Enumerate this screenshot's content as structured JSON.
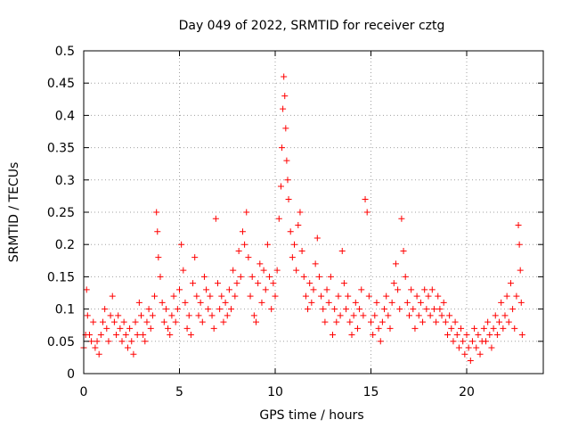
{
  "chart_data": {
    "type": "scatter",
    "title": "Day 049 of 2022, SRMTID for receiver cztg",
    "xlabel": "GPS time / hours",
    "ylabel": "SRMTID / TECUs",
    "xlim": [
      0,
      24
    ],
    "ylim": [
      0,
      0.5
    ],
    "x_ticks": [
      0,
      5,
      10,
      15,
      20
    ],
    "y_ticks": [
      0,
      0.05,
      0.1,
      0.15,
      0.2,
      0.25,
      0.3,
      0.35,
      0.4,
      0.45,
      0.5
    ],
    "x_tick_labels": [
      "0",
      "5",
      "10",
      "15",
      "20"
    ],
    "y_tick_labels": [
      "0",
      "0.05",
      "0.1",
      "0.15",
      "0.2",
      "0.25",
      "0.3",
      "0.35",
      "0.4",
      "0.45",
      "0.5"
    ],
    "grid": true,
    "marker": "+",
    "color": "#ff0000",
    "series": [
      {
        "points": [
          [
            0.0,
            0.04
          ],
          [
            0.1,
            0.06
          ],
          [
            0.15,
            0.13
          ],
          [
            0.2,
            0.09
          ],
          [
            0.3,
            0.06
          ],
          [
            0.4,
            0.05
          ],
          [
            0.5,
            0.08
          ],
          [
            0.6,
            0.04
          ],
          [
            0.7,
            0.05
          ],
          [
            0.8,
            0.03
          ],
          [
            0.9,
            0.06
          ],
          [
            1.0,
            0.08
          ],
          [
            1.1,
            0.1
          ],
          [
            1.2,
            0.07
          ],
          [
            1.3,
            0.05
          ],
          [
            1.4,
            0.09
          ],
          [
            1.5,
            0.12
          ],
          [
            1.6,
            0.08
          ],
          [
            1.7,
            0.06
          ],
          [
            1.8,
            0.09
          ],
          [
            1.9,
            0.07
          ],
          [
            2.0,
            0.05
          ],
          [
            2.1,
            0.08
          ],
          [
            2.2,
            0.06
          ],
          [
            2.3,
            0.04
          ],
          [
            2.4,
            0.07
          ],
          [
            2.5,
            0.05
          ],
          [
            2.6,
            0.03
          ],
          [
            2.7,
            0.08
          ],
          [
            2.8,
            0.06
          ],
          [
            2.9,
            0.11
          ],
          [
            3.0,
            0.09
          ],
          [
            3.1,
            0.06
          ],
          [
            3.2,
            0.05
          ],
          [
            3.3,
            0.08
          ],
          [
            3.4,
            0.1
          ],
          [
            3.5,
            0.07
          ],
          [
            3.6,
            0.09
          ],
          [
            3.7,
            0.12
          ],
          [
            3.8,
            0.25
          ],
          [
            3.85,
            0.22
          ],
          [
            3.9,
            0.18
          ],
          [
            4.0,
            0.15
          ],
          [
            4.1,
            0.11
          ],
          [
            4.2,
            0.08
          ],
          [
            4.3,
            0.1
          ],
          [
            4.4,
            0.07
          ],
          [
            4.5,
            0.06
          ],
          [
            4.6,
            0.09
          ],
          [
            4.7,
            0.12
          ],
          [
            4.8,
            0.08
          ],
          [
            4.9,
            0.1
          ],
          [
            5.0,
            0.13
          ],
          [
            5.1,
            0.2
          ],
          [
            5.2,
            0.16
          ],
          [
            5.3,
            0.11
          ],
          [
            5.4,
            0.07
          ],
          [
            5.5,
            0.09
          ],
          [
            5.6,
            0.06
          ],
          [
            5.7,
            0.14
          ],
          [
            5.8,
            0.18
          ],
          [
            5.9,
            0.12
          ],
          [
            6.0,
            0.09
          ],
          [
            6.1,
            0.11
          ],
          [
            6.2,
            0.08
          ],
          [
            6.3,
            0.15
          ],
          [
            6.4,
            0.13
          ],
          [
            6.5,
            0.1
          ],
          [
            6.6,
            0.12
          ],
          [
            6.7,
            0.09
          ],
          [
            6.8,
            0.07
          ],
          [
            6.9,
            0.24
          ],
          [
            7.0,
            0.14
          ],
          [
            7.1,
            0.1
          ],
          [
            7.2,
            0.12
          ],
          [
            7.3,
            0.08
          ],
          [
            7.4,
            0.11
          ],
          [
            7.5,
            0.09
          ],
          [
            7.6,
            0.13
          ],
          [
            7.7,
            0.1
          ],
          [
            7.8,
            0.16
          ],
          [
            7.9,
            0.12
          ],
          [
            8.0,
            0.14
          ],
          [
            8.1,
            0.19
          ],
          [
            8.2,
            0.15
          ],
          [
            8.3,
            0.22
          ],
          [
            8.4,
            0.2
          ],
          [
            8.5,
            0.25
          ],
          [
            8.6,
            0.18
          ],
          [
            8.7,
            0.12
          ],
          [
            8.8,
            0.15
          ],
          [
            8.9,
            0.09
          ],
          [
            9.0,
            0.08
          ],
          [
            9.1,
            0.14
          ],
          [
            9.2,
            0.17
          ],
          [
            9.3,
            0.11
          ],
          [
            9.4,
            0.16
          ],
          [
            9.5,
            0.13
          ],
          [
            9.6,
            0.2
          ],
          [
            9.7,
            0.15
          ],
          [
            9.8,
            0.1
          ],
          [
            9.9,
            0.14
          ],
          [
            10.0,
            0.12
          ],
          [
            10.1,
            0.16
          ],
          [
            10.2,
            0.24
          ],
          [
            10.3,
            0.29
          ],
          [
            10.35,
            0.35
          ],
          [
            10.4,
            0.41
          ],
          [
            10.45,
            0.46
          ],
          [
            10.5,
            0.43
          ],
          [
            10.55,
            0.38
          ],
          [
            10.6,
            0.33
          ],
          [
            10.65,
            0.3
          ],
          [
            10.7,
            0.27
          ],
          [
            10.8,
            0.22
          ],
          [
            10.9,
            0.18
          ],
          [
            11.0,
            0.2
          ],
          [
            11.1,
            0.16
          ],
          [
            11.2,
            0.23
          ],
          [
            11.3,
            0.25
          ],
          [
            11.4,
            0.19
          ],
          [
            11.5,
            0.15
          ],
          [
            11.6,
            0.12
          ],
          [
            11.7,
            0.1
          ],
          [
            11.8,
            0.14
          ],
          [
            11.9,
            0.11
          ],
          [
            12.0,
            0.13
          ],
          [
            12.1,
            0.17
          ],
          [
            12.2,
            0.21
          ],
          [
            12.3,
            0.15
          ],
          [
            12.4,
            0.12
          ],
          [
            12.5,
            0.1
          ],
          [
            12.6,
            0.08
          ],
          [
            12.7,
            0.13
          ],
          [
            12.8,
            0.11
          ],
          [
            12.9,
            0.15
          ],
          [
            13.0,
            0.06
          ],
          [
            13.1,
            0.1
          ],
          [
            13.2,
            0.08
          ],
          [
            13.3,
            0.12
          ],
          [
            13.4,
            0.09
          ],
          [
            13.5,
            0.19
          ],
          [
            13.6,
            0.14
          ],
          [
            13.7,
            0.1
          ],
          [
            13.8,
            0.12
          ],
          [
            13.9,
            0.08
          ],
          [
            14.0,
            0.06
          ],
          [
            14.1,
            0.09
          ],
          [
            14.2,
            0.11
          ],
          [
            14.3,
            0.07
          ],
          [
            14.4,
            0.1
          ],
          [
            14.5,
            0.13
          ],
          [
            14.6,
            0.09
          ],
          [
            14.7,
            0.27
          ],
          [
            14.8,
            0.25
          ],
          [
            14.9,
            0.12
          ],
          [
            15.0,
            0.08
          ],
          [
            15.1,
            0.06
          ],
          [
            15.2,
            0.09
          ],
          [
            15.3,
            0.11
          ],
          [
            15.4,
            0.07
          ],
          [
            15.5,
            0.05
          ],
          [
            15.6,
            0.08
          ],
          [
            15.7,
            0.1
          ],
          [
            15.8,
            0.12
          ],
          [
            15.9,
            0.09
          ],
          [
            16.0,
            0.07
          ],
          [
            16.1,
            0.11
          ],
          [
            16.2,
            0.14
          ],
          [
            16.3,
            0.17
          ],
          [
            16.4,
            0.13
          ],
          [
            16.5,
            0.1
          ],
          [
            16.6,
            0.24
          ],
          [
            16.7,
            0.19
          ],
          [
            16.8,
            0.15
          ],
          [
            16.9,
            0.11
          ],
          [
            17.0,
            0.09
          ],
          [
            17.1,
            0.13
          ],
          [
            17.2,
            0.1
          ],
          [
            17.3,
            0.07
          ],
          [
            17.4,
            0.12
          ],
          [
            17.5,
            0.09
          ],
          [
            17.6,
            0.11
          ],
          [
            17.7,
            0.08
          ],
          [
            17.8,
            0.13
          ],
          [
            17.9,
            0.1
          ],
          [
            18.0,
            0.12
          ],
          [
            18.1,
            0.09
          ],
          [
            18.2,
            0.13
          ],
          [
            18.3,
            0.1
          ],
          [
            18.4,
            0.08
          ],
          [
            18.5,
            0.12
          ],
          [
            18.6,
            0.1
          ],
          [
            18.7,
            0.09
          ],
          [
            18.8,
            0.11
          ],
          [
            18.9,
            0.08
          ],
          [
            19.0,
            0.06
          ],
          [
            19.1,
            0.09
          ],
          [
            19.2,
            0.07
          ],
          [
            19.3,
            0.05
          ],
          [
            19.4,
            0.08
          ],
          [
            19.5,
            0.06
          ],
          [
            19.6,
            0.04
          ],
          [
            19.7,
            0.07
          ],
          [
            19.8,
            0.05
          ],
          [
            19.9,
            0.03
          ],
          [
            20.0,
            0.06
          ],
          [
            20.1,
            0.04
          ],
          [
            20.2,
            0.02
          ],
          [
            20.3,
            0.05
          ],
          [
            20.4,
            0.07
          ],
          [
            20.5,
            0.04
          ],
          [
            20.6,
            0.06
          ],
          [
            20.7,
            0.03
          ],
          [
            20.8,
            0.05
          ],
          [
            20.9,
            0.07
          ],
          [
            21.0,
            0.05
          ],
          [
            21.1,
            0.08
          ],
          [
            21.2,
            0.06
          ],
          [
            21.3,
            0.04
          ],
          [
            21.4,
            0.07
          ],
          [
            21.5,
            0.09
          ],
          [
            21.6,
            0.06
          ],
          [
            21.7,
            0.08
          ],
          [
            21.8,
            0.11
          ],
          [
            21.9,
            0.07
          ],
          [
            22.0,
            0.09
          ],
          [
            22.1,
            0.12
          ],
          [
            22.2,
            0.08
          ],
          [
            22.3,
            0.14
          ],
          [
            22.4,
            0.1
          ],
          [
            22.5,
            0.07
          ],
          [
            22.6,
            0.12
          ],
          [
            22.7,
            0.23
          ],
          [
            22.75,
            0.2
          ],
          [
            22.8,
            0.16
          ],
          [
            22.85,
            0.11
          ],
          [
            22.9,
            0.06
          ]
        ]
      }
    ]
  }
}
